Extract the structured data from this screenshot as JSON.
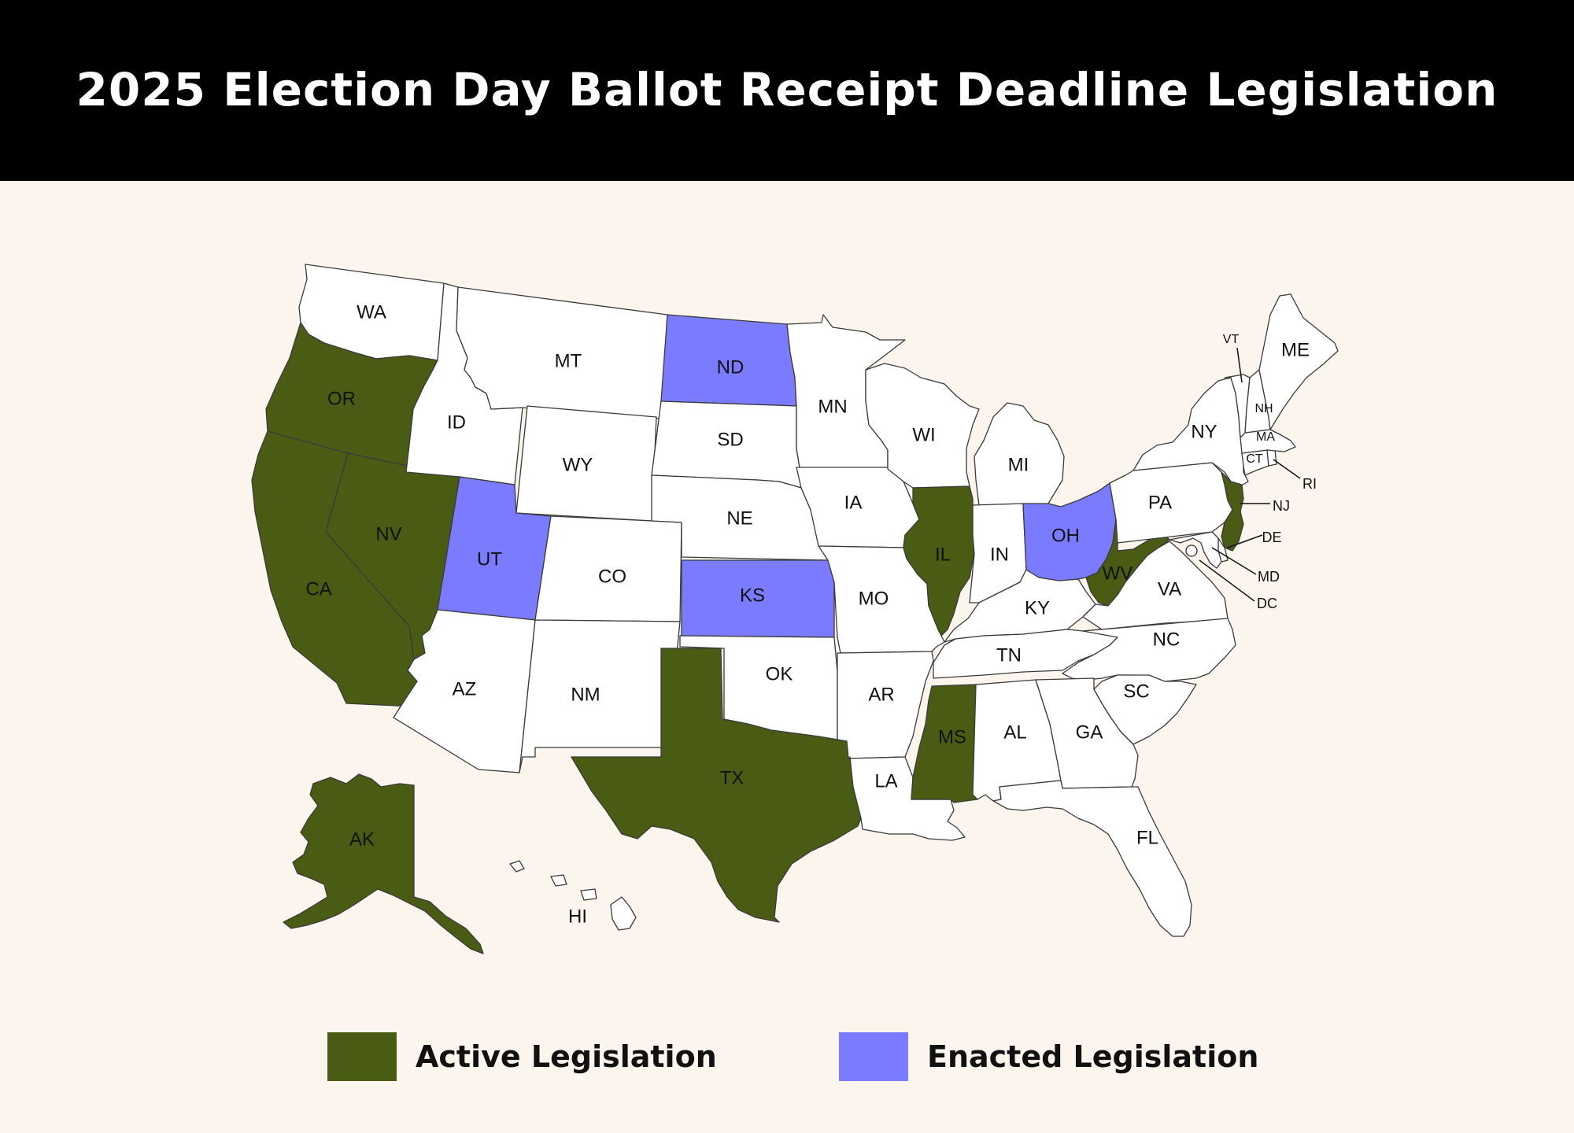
{
  "title": "2025 Election Day Ballot Receipt Deadline Legislation",
  "colors": {
    "background": "#fbf5ed",
    "header": "#000000",
    "state_default": "#ffffff",
    "state_stroke": "#3a3a3a",
    "active": "#4a5b13",
    "enacted": "#7b7bff"
  },
  "legend": [
    {
      "status": "active",
      "label": "Active Legislation"
    },
    {
      "status": "enacted",
      "label": "Enacted Legislation"
    }
  ],
  "states": [
    {
      "abbr": "WA",
      "status": "none"
    },
    {
      "abbr": "OR",
      "status": "active"
    },
    {
      "abbr": "CA",
      "status": "active"
    },
    {
      "abbr": "NV",
      "status": "active"
    },
    {
      "abbr": "ID",
      "status": "none"
    },
    {
      "abbr": "MT",
      "status": "none"
    },
    {
      "abbr": "WY",
      "status": "none"
    },
    {
      "abbr": "UT",
      "status": "enacted"
    },
    {
      "abbr": "CO",
      "status": "none"
    },
    {
      "abbr": "AZ",
      "status": "none"
    },
    {
      "abbr": "NM",
      "status": "none"
    },
    {
      "abbr": "ND",
      "status": "enacted"
    },
    {
      "abbr": "SD",
      "status": "none"
    },
    {
      "abbr": "NE",
      "status": "none"
    },
    {
      "abbr": "KS",
      "status": "enacted"
    },
    {
      "abbr": "OK",
      "status": "none"
    },
    {
      "abbr": "TX",
      "status": "active"
    },
    {
      "abbr": "MN",
      "status": "none"
    },
    {
      "abbr": "IA",
      "status": "none"
    },
    {
      "abbr": "MO",
      "status": "none"
    },
    {
      "abbr": "AR",
      "status": "none"
    },
    {
      "abbr": "LA",
      "status": "none"
    },
    {
      "abbr": "WI",
      "status": "none"
    },
    {
      "abbr": "IL",
      "status": "active"
    },
    {
      "abbr": "MS",
      "status": "active"
    },
    {
      "abbr": "MI",
      "status": "none"
    },
    {
      "abbr": "IN",
      "status": "none"
    },
    {
      "abbr": "KY",
      "status": "none"
    },
    {
      "abbr": "TN",
      "status": "none"
    },
    {
      "abbr": "AL",
      "status": "none"
    },
    {
      "abbr": "OH",
      "status": "enacted"
    },
    {
      "abbr": "WV",
      "status": "active"
    },
    {
      "abbr": "VA",
      "status": "none"
    },
    {
      "abbr": "NC",
      "status": "none"
    },
    {
      "abbr": "SC",
      "status": "none"
    },
    {
      "abbr": "GA",
      "status": "none"
    },
    {
      "abbr": "FL",
      "status": "none"
    },
    {
      "abbr": "PA",
      "status": "none"
    },
    {
      "abbr": "NY",
      "status": "none"
    },
    {
      "abbr": "NJ",
      "status": "active"
    },
    {
      "abbr": "DE",
      "status": "none"
    },
    {
      "abbr": "MD",
      "status": "none"
    },
    {
      "abbr": "DC",
      "status": "none"
    },
    {
      "abbr": "CT",
      "status": "none"
    },
    {
      "abbr": "RI",
      "status": "none"
    },
    {
      "abbr": "MA",
      "status": "none"
    },
    {
      "abbr": "VT",
      "status": "none"
    },
    {
      "abbr": "NH",
      "status": "none"
    },
    {
      "abbr": "ME",
      "status": "none"
    },
    {
      "abbr": "AK",
      "status": "active"
    },
    {
      "abbr": "HI",
      "status": "none"
    }
  ]
}
